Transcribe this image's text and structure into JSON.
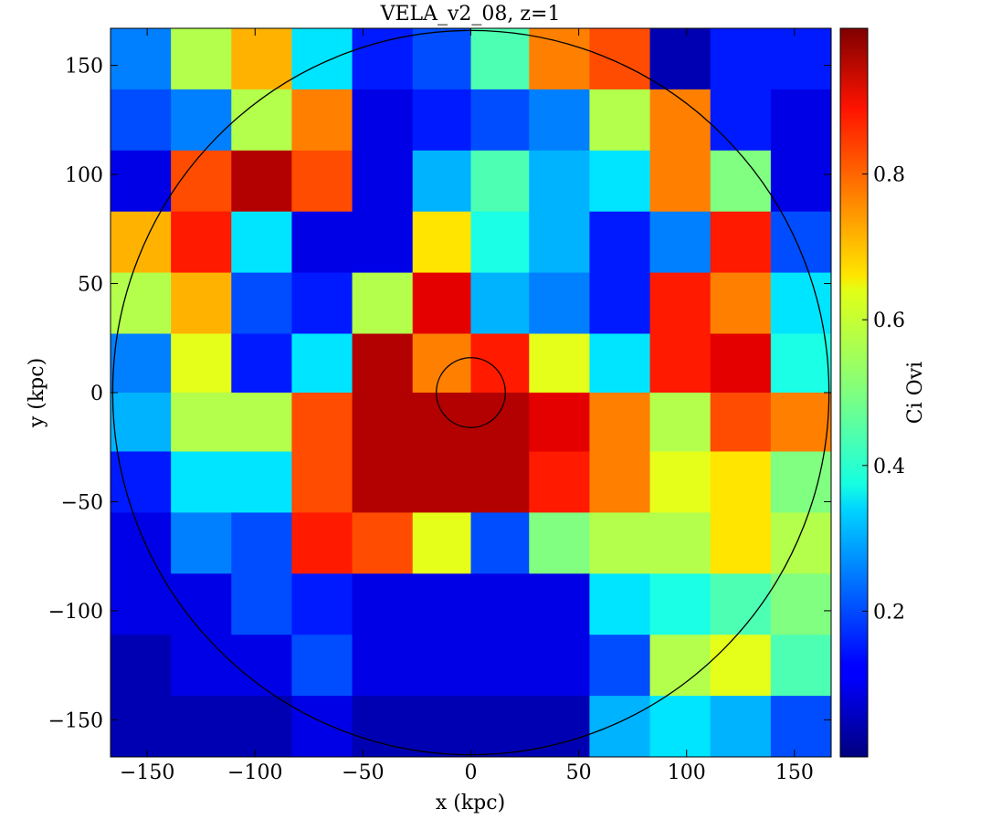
{
  "chart_data": {
    "type": "heatmap",
    "title": "VELA_v2_08, z=1",
    "xlabel": "x  (kpc)",
    "ylabel": "y  (kpc)",
    "colorbar_label": "Ci Ovi",
    "colormap": "jet",
    "xlim": [
      -167,
      167
    ],
    "ylim": [
      -167,
      167
    ],
    "clim": [
      0.0,
      1.0
    ],
    "x_ticks": [
      -150,
      -100,
      -50,
      0,
      50,
      100,
      150
    ],
    "x_tick_labels": [
      "−150",
      "−100",
      "−50",
      "0",
      "50",
      "100",
      "150"
    ],
    "y_ticks": [
      -150,
      -100,
      -50,
      0,
      50,
      100,
      150
    ],
    "y_tick_labels": [
      "−150",
      "−100",
      "−50",
      "0",
      "50",
      "100",
      "150"
    ],
    "colorbar_ticks": [
      0.2,
      0.4,
      0.6,
      0.8
    ],
    "colorbar_tick_labels": [
      "0.2",
      "0.4",
      "0.6",
      "0.8"
    ],
    "circles": [
      {
        "center": [
          0,
          0
        ],
        "radius": 166
      },
      {
        "center": [
          0,
          0
        ],
        "radius": 16
      }
    ],
    "grid": false,
    "grid_columns": [
      -167,
      -139,
      -111,
      -83,
      -55,
      -27,
      0,
      27,
      55,
      83,
      111,
      139,
      167
    ],
    "grid_rows": [
      167,
      139,
      111,
      83,
      55,
      27,
      0,
      -27,
      -55,
      -83,
      -111,
      -139,
      -167
    ],
    "values": [
      [
        0.25,
        0.55,
        0.7,
        0.35,
        0.15,
        0.2,
        0.45,
        0.75,
        0.8,
        0.05,
        0.15,
        0.15
      ],
      [
        0.2,
        0.25,
        0.55,
        0.75,
        0.1,
        0.15,
        0.2,
        0.25,
        0.55,
        0.75,
        0.15,
        0.1
      ],
      [
        0.1,
        0.8,
        0.95,
        0.8,
        0.1,
        0.3,
        0.45,
        0.3,
        0.35,
        0.75,
        0.5,
        0.1
      ],
      [
        0.7,
        0.85,
        0.35,
        0.1,
        0.1,
        0.65,
        0.4,
        0.3,
        0.15,
        0.25,
        0.85,
        0.2
      ],
      [
        0.55,
        0.7,
        0.2,
        0.15,
        0.55,
        0.9,
        0.3,
        0.25,
        0.15,
        0.85,
        0.75,
        0.35
      ],
      [
        0.25,
        0.6,
        0.15,
        0.35,
        0.95,
        0.75,
        0.85,
        0.6,
        0.35,
        0.85,
        0.9,
        0.4
      ],
      [
        0.3,
        0.55,
        0.55,
        0.8,
        0.95,
        0.95,
        0.95,
        0.9,
        0.75,
        0.55,
        0.8,
        0.75
      ],
      [
        0.15,
        0.35,
        0.35,
        0.8,
        0.95,
        0.95,
        0.95,
        0.85,
        0.75,
        0.6,
        0.65,
        0.5
      ],
      [
        0.1,
        0.25,
        0.2,
        0.85,
        0.8,
        0.6,
        0.2,
        0.5,
        0.55,
        0.55,
        0.65,
        0.55
      ],
      [
        0.1,
        0.1,
        0.2,
        0.15,
        0.1,
        0.1,
        0.1,
        0.1,
        0.35,
        0.4,
        0.45,
        0.5
      ],
      [
        0.05,
        0.1,
        0.1,
        0.2,
        0.1,
        0.1,
        0.1,
        0.1,
        0.2,
        0.55,
        0.6,
        0.45
      ],
      [
        0.05,
        0.05,
        0.05,
        0.1,
        0.05,
        0.05,
        0.05,
        0.05,
        0.3,
        0.35,
        0.3,
        0.2
      ]
    ]
  }
}
